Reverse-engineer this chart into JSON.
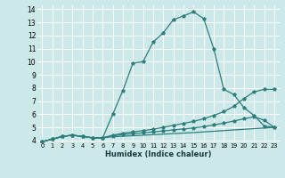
{
  "xlabel": "Humidex (Indice chaleur)",
  "bg_color": "#cce8e8",
  "grid_color": "#ffffff",
  "line_color": "#2e7d7d",
  "xlim": [
    -0.5,
    23.5
  ],
  "ylim": [
    3.85,
    14.3
  ],
  "xticks": [
    0,
    1,
    2,
    3,
    4,
    5,
    6,
    7,
    8,
    9,
    10,
    11,
    12,
    13,
    14,
    15,
    16,
    17,
    18,
    19,
    20,
    21,
    22,
    23
  ],
  "yticks": [
    4,
    5,
    6,
    7,
    8,
    9,
    10,
    11,
    12,
    13,
    14
  ],
  "line1_x": [
    0,
    1,
    2,
    3,
    4,
    5,
    6,
    7,
    8,
    9,
    10,
    11,
    12,
    13,
    14,
    15,
    16,
    17,
    18,
    19,
    20,
    21,
    22,
    23
  ],
  "line1_y": [
    3.9,
    4.1,
    4.3,
    4.4,
    4.3,
    4.2,
    4.2,
    6.0,
    7.8,
    9.9,
    10.0,
    11.5,
    12.2,
    13.2,
    13.5,
    13.8,
    13.3,
    11.0,
    7.9,
    7.5,
    6.5,
    5.9,
    5.1,
    5.0
  ],
  "line2_x": [
    0,
    1,
    2,
    3,
    4,
    5,
    6,
    7,
    8,
    9,
    10,
    11,
    12,
    13,
    14,
    15,
    16,
    17,
    18,
    19,
    20,
    21,
    22,
    23
  ],
  "line2_y": [
    3.9,
    4.1,
    4.3,
    4.4,
    4.3,
    4.2,
    4.2,
    4.4,
    4.55,
    4.65,
    4.75,
    4.85,
    5.0,
    5.15,
    5.3,
    5.45,
    5.65,
    5.9,
    6.2,
    6.6,
    7.2,
    7.7,
    7.9,
    7.9
  ],
  "line3_x": [
    0,
    1,
    2,
    3,
    4,
    5,
    6,
    7,
    8,
    9,
    10,
    11,
    12,
    13,
    14,
    15,
    16,
    17,
    18,
    19,
    20,
    21,
    22,
    23
  ],
  "line3_y": [
    3.9,
    4.1,
    4.3,
    4.4,
    4.3,
    4.2,
    4.2,
    4.35,
    4.45,
    4.52,
    4.58,
    4.65,
    4.72,
    4.8,
    4.88,
    4.95,
    5.05,
    5.18,
    5.32,
    5.48,
    5.65,
    5.8,
    5.55,
    5.0
  ],
  "line4_x": [
    0,
    1,
    2,
    3,
    4,
    5,
    6,
    7,
    8,
    9,
    10,
    11,
    12,
    13,
    14,
    15,
    16,
    17,
    18,
    19,
    20,
    21,
    22,
    23
  ],
  "line4_y": [
    3.9,
    4.1,
    4.3,
    4.4,
    4.3,
    4.2,
    4.2,
    4.28,
    4.32,
    4.36,
    4.4,
    4.44,
    4.48,
    4.52,
    4.56,
    4.6,
    4.65,
    4.7,
    4.75,
    4.8,
    4.85,
    4.9,
    4.95,
    5.0
  ]
}
